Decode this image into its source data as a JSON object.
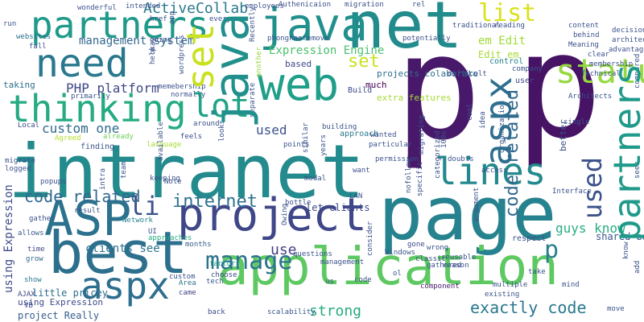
{
  "words": [
    {
      "text": "p",
      "color": "#48186a"
    },
    {
      "text": "p",
      "color": "#471365"
    },
    {
      "text": "intranet",
      "color": "#238a8d"
    },
    {
      "text": "page",
      "color": "#26828e"
    },
    {
      "text": "application",
      "color": "#5ec962"
    },
    {
      "text": "net",
      "color": "#228c8d"
    },
    {
      "text": "best",
      "color": "#2d708e"
    },
    {
      "text": "ASP",
      "color": "#2c728e"
    },
    {
      "text": "project",
      "color": "#3f4788"
    },
    {
      "text": "web",
      "color": "#1f9e89"
    },
    {
      "text": "need",
      "color": "#2a788e"
    },
    {
      "text": "thinking",
      "color": "#25ab82"
    },
    {
      "text": "java",
      "color": "#21908d"
    },
    {
      "text": "partners",
      "color": "#1f9a8a"
    },
    {
      "text": "aspx",
      "color": "#2e6e8e"
    },
    {
      "text": "lot",
      "color": "#20a386"
    },
    {
      "text": "lines",
      "color": "#23898e"
    },
    {
      "text": "status",
      "color": "#95d840"
    },
    {
      "text": "manage",
      "color": "#2c738e"
    },
    {
      "text": "list",
      "color": "#d8e219"
    },
    {
      "text": "set",
      "color": "#cae11f"
    },
    {
      "text": "p",
      "color": "#277f8e"
    },
    {
      "text": "li",
      "color": "#3b528b"
    },
    {
      "text": "internet",
      "color": "#2d718e"
    },
    {
      "text": "code related",
      "color": "#31688e"
    },
    {
      "text": "ActiveCollab",
      "color": "#2a788e"
    },
    {
      "text": "exactly code",
      "color": "#2a788e"
    },
    {
      "text": "strong",
      "color": "#25ab82"
    },
    {
      "text": "use",
      "color": "#433e85"
    },
    {
      "text": "guys know",
      "color": "#27ad81"
    },
    {
      "text": "used",
      "color": "#3b528b"
    },
    {
      "text": "custom one",
      "color": "#30698e"
    },
    {
      "text": "PHP platform",
      "color": "#3f4788"
    },
    {
      "text": "management system",
      "color": "#31688e"
    },
    {
      "text": "Expression Engine",
      "color": "#4ac16d"
    },
    {
      "text": "em Edit",
      "color": "#a2da37"
    },
    {
      "text": "clients see",
      "color": "#2c728e"
    },
    {
      "text": "Edit em",
      "color": "#a8db34"
    },
    {
      "text": "projects colaborate",
      "color": "#2e6e8e"
    },
    {
      "text": "extra features",
      "color": "#a5db36"
    },
    {
      "text": "shared basic",
      "color": "#3b528b"
    },
    {
      "text": "let clients",
      "color": "#3e4a89"
    },
    {
      "text": "little pricey",
      "color": "#2e6e8e"
    },
    {
      "text": "project Really",
      "color": "#355f8d"
    },
    {
      "text": "using Expression",
      "color": "#3e4a89"
    },
    {
      "text": "based",
      "color": "#3f4788"
    },
    {
      "text": "much",
      "color": "#440154"
    },
    {
      "text": "Build",
      "color": "#3e4989"
    },
    {
      "text": "taking",
      "color": "#2d708e"
    },
    {
      "text": "approach",
      "color": "#2a788e"
    },
    {
      "text": "user",
      "color": "#3f4788"
    },
    {
      "text": "control",
      "color": "#26828e"
    },
    {
      "text": "respect",
      "color": "#3b528b"
    },
    {
      "text": "gone",
      "color": "#3e4c8a"
    },
    {
      "text": "Windows",
      "color": "#39568c"
    },
    {
      "text": "classic",
      "color": "#3e4c8a"
    },
    {
      "text": "wrong",
      "color": "#3b528b"
    },
    {
      "text": "component",
      "color": "#48186a"
    },
    {
      "text": "code",
      "color": "#3b528b"
    },
    {
      "text": "us",
      "color": "#3b528b"
    },
    {
      "text": "months",
      "color": "#355f8d"
    },
    {
      "text": "UI",
      "color": "#3b528b"
    },
    {
      "text": "Area",
      "color": "#2d708e"
    },
    {
      "text": "factors",
      "color": "#1f9e89"
    },
    {
      "text": "custom",
      "color": "#3b528b"
    },
    {
      "text": "choose",
      "color": "#3e4a89"
    },
    {
      "text": "tech",
      "color": "#38588c"
    },
    {
      "text": "came",
      "color": "#414487"
    },
    {
      "text": "back",
      "color": "#3e4c8a"
    },
    {
      "text": "scalability",
      "color": "#39568c"
    },
    {
      "text": "management",
      "color": "#3b528b"
    },
    {
      "text": "questions",
      "color": "#3b528b"
    },
    {
      "text": "time",
      "color": "#3e4a89"
    },
    {
      "text": "allows",
      "color": "#38588c"
    },
    {
      "text": "gather",
      "color": "#3b528b"
    },
    {
      "text": "grow",
      "color": "#31688e"
    },
    {
      "text": "Network",
      "color": "#26828e"
    },
    {
      "text": "approaches",
      "color": "#25ab82"
    },
    {
      "text": "show",
      "color": "#2a788e"
    },
    {
      "text": "AJAX",
      "color": "#3f4788"
    },
    {
      "text": "VB",
      "color": "#3e4989"
    },
    {
      "text": "Local",
      "color": "#3e4c8a"
    },
    {
      "text": "finding",
      "color": "#3b528b"
    },
    {
      "text": "Agreed",
      "color": "#b5de2b"
    },
    {
      "text": "language",
      "color": "#a8db34"
    },
    {
      "text": "already",
      "color": "#6ece58"
    },
    {
      "text": "feels",
      "color": "#3e4c8a"
    },
    {
      "text": "around",
      "color": "#3b528b"
    },
    {
      "text": "run",
      "color": "#3b528b"
    },
    {
      "text": "websites",
      "color": "#2d708e"
    },
    {
      "text": "fall",
      "color": "#3b528b"
    },
    {
      "text": "wonderful",
      "color": "#3b528b"
    },
    {
      "text": "intended",
      "color": "#3b528b"
    },
    {
      "text": "employees",
      "color": "#3b528b"
    },
    {
      "text": "Authenicaion",
      "color": "#3b528b"
    },
    {
      "text": "migration",
      "color": "#3b528b"
    },
    {
      "text": "rel",
      "color": "#3b528b"
    },
    {
      "text": "href",
      "color": "#3b528b"
    },
    {
      "text": "app",
      "color": "#3b528b"
    },
    {
      "text": "going",
      "color": "#3b528b"
    },
    {
      "text": "everyone",
      "color": "#3b528b"
    },
    {
      "text": "okay",
      "color": "#3b528b"
    },
    {
      "text": "help",
      "color": "#3b528b"
    },
    {
      "text": "wordpress",
      "color": "#3b528b"
    },
    {
      "text": "memebership",
      "color": "#3b528b"
    },
    {
      "text": "normally",
      "color": "#3b528b"
    },
    {
      "text": "primarily",
      "color": "#3b528b"
    },
    {
      "text": "another",
      "color": "#95d840"
    },
    {
      "text": "Recently",
      "color": "#3b528b"
    },
    {
      "text": "separate",
      "color": "#3b528b"
    },
    {
      "text": "looks",
      "color": "#3b528b"
    },
    {
      "text": "phonghao",
      "color": "#3b528b"
    },
    {
      "text": "remove",
      "color": "#3b528b"
    },
    {
      "text": "potentially",
      "color": "#3b528b"
    },
    {
      "text": "difficult",
      "color": "#3b528b"
    },
    {
      "text": "company",
      "color": "#3b528b"
    },
    {
      "text": "traditional",
      "color": "#3b528b"
    },
    {
      "text": "reading",
      "color": "#3b528b"
    },
    {
      "text": "content",
      "color": "#3b528b"
    },
    {
      "text": "behind",
      "color": "#3b528b"
    },
    {
      "text": "decision",
      "color": "#3b528b"
    },
    {
      "text": "architects",
      "color": "#3b528b"
    },
    {
      "text": "advantages",
      "color": "#3b528b"
    },
    {
      "text": "Meaning",
      "color": "#3b528b"
    },
    {
      "text": "clear",
      "color": "#3b528b"
    },
    {
      "text": "membership",
      "color": "#3b528b"
    },
    {
      "text": "Technical",
      "color": "#3b528b"
    },
    {
      "text": "Architects",
      "color": "#3b528b"
    },
    {
      "text": "compared",
      "color": "#3b528b"
    },
    {
      "text": "single",
      "color": "#3b528b"
    },
    {
      "text": "better",
      "color": "#3b528b"
    },
    {
      "text": "access",
      "color": "#3b528b"
    },
    {
      "text": "Interface",
      "color": "#3b528b"
    },
    {
      "text": "seek",
      "color": "#3b528b"
    },
    {
      "text": "know",
      "color": "#3b528b"
    },
    {
      "text": "add",
      "color": "#3b528b"
    },
    {
      "text": "move",
      "color": "#3b528b"
    },
    {
      "text": "mind",
      "color": "#3b528b"
    },
    {
      "text": "take",
      "color": "#3b528b"
    },
    {
      "text": "multiple",
      "color": "#3b528b"
    },
    {
      "text": "existing",
      "color": "#3b528b"
    },
    {
      "text": "reason",
      "color": "#3b528b"
    },
    {
      "text": "gathered",
      "color": "#3b528b"
    },
    {
      "text": "reusable",
      "color": "#3b528b"
    },
    {
      "text": "specific",
      "color": "#3b528b"
    },
    {
      "text": "nofollow",
      "color": "#3b528b"
    },
    {
      "text": "categorized",
      "color": "#3b528b"
    },
    {
      "text": "LAN",
      "color": "#3b528b"
    },
    {
      "text": "modal",
      "color": "#3b528b"
    },
    {
      "text": "want",
      "color": "#3b528b"
    },
    {
      "text": "permission",
      "color": "#3b528b"
    },
    {
      "text": "years",
      "color": "#3b528b"
    },
    {
      "text": "consider",
      "color": "#3b528b"
    },
    {
      "text": "ol",
      "color": "#3b528b"
    },
    {
      "text": "similar",
      "color": "#3b528b"
    },
    {
      "text": "Owing",
      "color": "#3b528b"
    },
    {
      "text": "bottle",
      "color": "#3b528b"
    },
    {
      "text": "points",
      "color": "#3b528b"
    },
    {
      "text": "particular",
      "color": "#3b528b"
    },
    {
      "text": "wanted",
      "color": "#3b528b"
    },
    {
      "text": "building",
      "color": "#3b528b"
    },
    {
      "text": "migrating",
      "color": "#3b528b"
    },
    {
      "text": "100s",
      "color": "#3b528b"
    },
    {
      "text": "doubts",
      "color": "#3b528b"
    },
    {
      "text": "idea",
      "color": "#3b528b"
    },
    {
      "text": "cool",
      "color": "#3b528b"
    },
    {
      "text": "organization",
      "color": "#3b528b"
    },
    {
      "text": "available",
      "color": "#3b528b"
    },
    {
      "text": "keeping",
      "color": "#3b528b"
    },
    {
      "text": "Note",
      "color": "#3b528b"
    },
    {
      "text": "team",
      "color": "#3b528b"
    },
    {
      "text": "intra",
      "color": "#3b528b"
    },
    {
      "text": "popups",
      "color": "#3b528b"
    },
    {
      "text": "result",
      "color": "#3b528b"
    },
    {
      "text": "logged",
      "color": "#3b528b"
    },
    {
      "text": "migrate",
      "color": "#3b528b"
    },
    {
      "text": "argument",
      "color": "#3b528b"
    },
    {
      "text": "inside",
      "color": "#3b528b"
    },
    {
      "text": "looking",
      "color": "#3b528b"
    },
    {
      "text": "entry",
      "color": "#3b528b"
    },
    {
      "text": "afetr",
      "color": "#3b528b"
    },
    {
      "text": "check",
      "color": "#3b528b"
    },
    {
      "text": "easy",
      "color": "#3b528b"
    },
    {
      "text": "crystal",
      "color": "#3b528b"
    },
    {
      "text": "made",
      "color": "#3b528b"
    },
    {
      "text": "new",
      "color": "#3b528b"
    }
  ]
}
